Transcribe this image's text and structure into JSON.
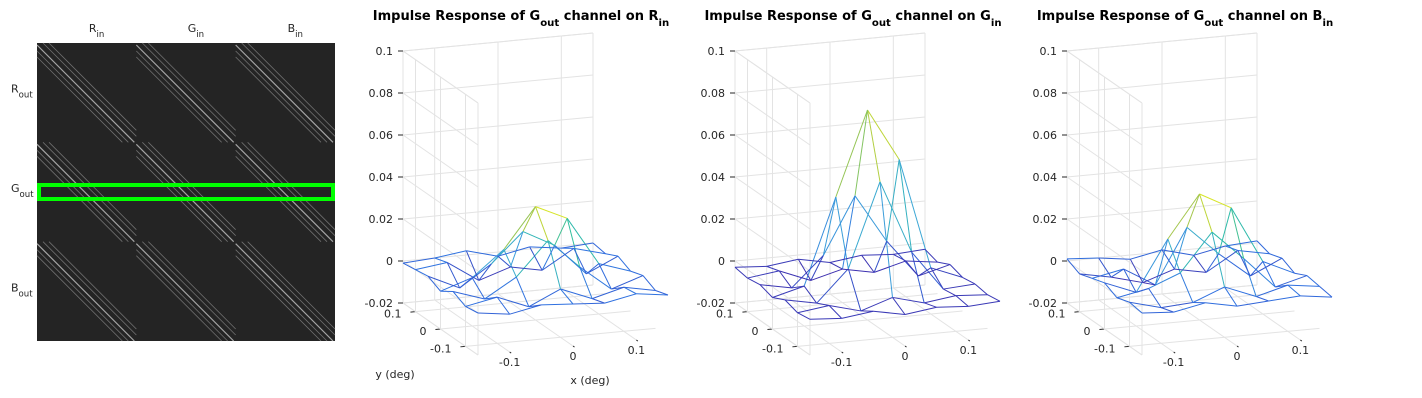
{
  "chart_data": [
    {
      "type": "image",
      "column_labels": [
        {
          "text": "R",
          "sub": "in"
        },
        {
          "text": "G",
          "sub": "in"
        },
        {
          "text": "B",
          "sub": "in"
        }
      ],
      "row_labels": [
        {
          "text": "R",
          "sub": "out"
        },
        {
          "text": "G",
          "sub": "out"
        },
        {
          "text": "B",
          "sub": "out"
        }
      ],
      "highlight_row": 1,
      "highlight_color": "#00ff00"
    },
    {
      "type": "surface",
      "title": {
        "text": "Impulse Response of G",
        "sub": "out",
        "text2": " channel on R",
        "sub2": "in"
      },
      "xlabel": "x (deg)",
      "ylabel": "y (deg)",
      "x": [
        -0.15,
        -0.1,
        -0.05,
        0,
        0.05,
        0.1,
        0.15
      ],
      "y": [
        -0.15,
        -0.1,
        -0.05,
        0,
        0.05,
        0.1,
        0.15
      ],
      "xlim": [
        -0.15,
        0.15
      ],
      "ylim": [
        -0.15,
        0.15
      ],
      "zlim": [
        -0.02,
        0.1
      ],
      "xticks": [
        -0.1,
        0,
        0.1
      ],
      "yticks": [
        -0.1,
        0,
        0.1
      ],
      "zticks": [
        -0.02,
        0,
        0.02,
        0.04,
        0.06,
        0.08,
        0.1
      ],
      "grid": true,
      "colormap": [
        "#3e26a8",
        "#2f6fe0",
        "#3da5d9",
        "#2cbfa0",
        "#a6c64a",
        "#f9fb0e"
      ],
      "z": [
        [
          0,
          -0.002,
          0.001,
          0,
          -0.001,
          0.002,
          0
        ],
        [
          -0.001,
          0.002,
          -0.004,
          0.003,
          -0.003,
          0.001,
          -0.002
        ],
        [
          0.002,
          -0.003,
          0.006,
          0.022,
          0.008,
          -0.004,
          0.001
        ],
        [
          -0.002,
          0.003,
          0.015,
          0.034,
          0.027,
          0.004,
          -0.001
        ],
        [
          0.001,
          -0.006,
          0.004,
          0.018,
          0.01,
          -0.005,
          0.002
        ],
        [
          0,
          0.002,
          -0.008,
          -0.003,
          -0.006,
          0.003,
          -0.001
        ],
        [
          -0.001,
          0,
          0.002,
          -0.002,
          0.001,
          -0.001,
          0
        ]
      ]
    },
    {
      "type": "surface",
      "title": {
        "text": "Impulse Response of G",
        "sub": "out",
        "text2": " channel on G",
        "sub2": "in"
      },
      "x": [
        -0.15,
        -0.1,
        -0.05,
        0,
        0.05,
        0.1,
        0.15
      ],
      "y": [
        -0.15,
        -0.1,
        -0.05,
        0,
        0.05,
        0.1,
        0.15
      ],
      "xlim": [
        -0.15,
        0.15
      ],
      "ylim": [
        -0.15,
        0.15
      ],
      "zlim": [
        -0.02,
        0.1
      ],
      "xticks": [
        -0.1,
        0,
        0.1
      ],
      "yticks": [
        -0.1,
        0,
        0.1
      ],
      "zticks": [
        -0.02,
        0,
        0.02,
        0.04,
        0.06,
        0.08,
        0.1
      ],
      "grid": true,
      "colormap": [
        "#3e26a8",
        "#2f6fe0",
        "#3da5d9",
        "#2cbfa0",
        "#a6c64a",
        "#f9fb0e"
      ],
      "z": [
        [
          -0.003,
          -0.004,
          -0.002,
          -0.005,
          -0.003,
          -0.004,
          -0.003
        ],
        [
          -0.004,
          -0.002,
          -0.006,
          -0.001,
          -0.005,
          -0.003,
          -0.004
        ],
        [
          -0.002,
          -0.005,
          0.01,
          0.05,
          0.015,
          -0.004,
          -0.003
        ],
        [
          -0.005,
          -0.001,
          0.04,
          0.08,
          0.055,
          0.002,
          -0.004
        ],
        [
          -0.003,
          -0.006,
          0.008,
          0.035,
          0.012,
          -0.006,
          -0.002
        ],
        [
          -0.004,
          -0.002,
          -0.008,
          -0.004,
          -0.007,
          -0.003,
          -0.005
        ],
        [
          -0.003,
          -0.004,
          -0.002,
          -0.005,
          -0.003,
          -0.004,
          -0.003
        ]
      ]
    },
    {
      "type": "surface",
      "title": {
        "text": "Impulse Response of G",
        "sub": "out",
        "text2": " channel on B",
        "sub2": "in"
      },
      "x": [
        -0.15,
        -0.1,
        -0.05,
        0,
        0.05,
        0.1,
        0.15
      ],
      "y": [
        -0.15,
        -0.1,
        -0.05,
        0,
        0.05,
        0.1,
        0.15
      ],
      "xlim": [
        -0.15,
        0.15
      ],
      "ylim": [
        -0.15,
        0.15
      ],
      "zlim": [
        -0.02,
        0.1
      ],
      "xticks": [
        -0.1,
        0,
        0.1
      ],
      "yticks": [
        -0.1,
        0,
        0.1
      ],
      "zticks": [
        -0.02,
        0,
        0.02,
        0.04,
        0.06,
        0.08,
        0.1
      ],
      "grid": true,
      "colormap": [
        "#3e26a8",
        "#2f6fe0",
        "#3da5d9",
        "#2cbfa0",
        "#a6c64a",
        "#f9fb0e"
      ],
      "z": [
        [
          0,
          -0.001,
          0.002,
          -0.001,
          0,
          0.001,
          -0.001
        ],
        [
          0.001,
          -0.003,
          -0.002,
          0.004,
          -0.002,
          0.002,
          0
        ],
        [
          -0.001,
          0.002,
          0.008,
          0.026,
          0.012,
          -0.003,
          0.001
        ],
        [
          0.002,
          -0.004,
          0.02,
          0.04,
          0.032,
          0.005,
          -0.002
        ],
        [
          0,
          0.003,
          -0.006,
          0.02,
          0.006,
          -0.006,
          0.001
        ],
        [
          -0.002,
          -0.005,
          -0.009,
          -0.004,
          -0.007,
          0.002,
          -0.001
        ],
        [
          0.001,
          0,
          -0.002,
          0.001,
          -0.003,
          0,
          0.001
        ]
      ]
    }
  ]
}
